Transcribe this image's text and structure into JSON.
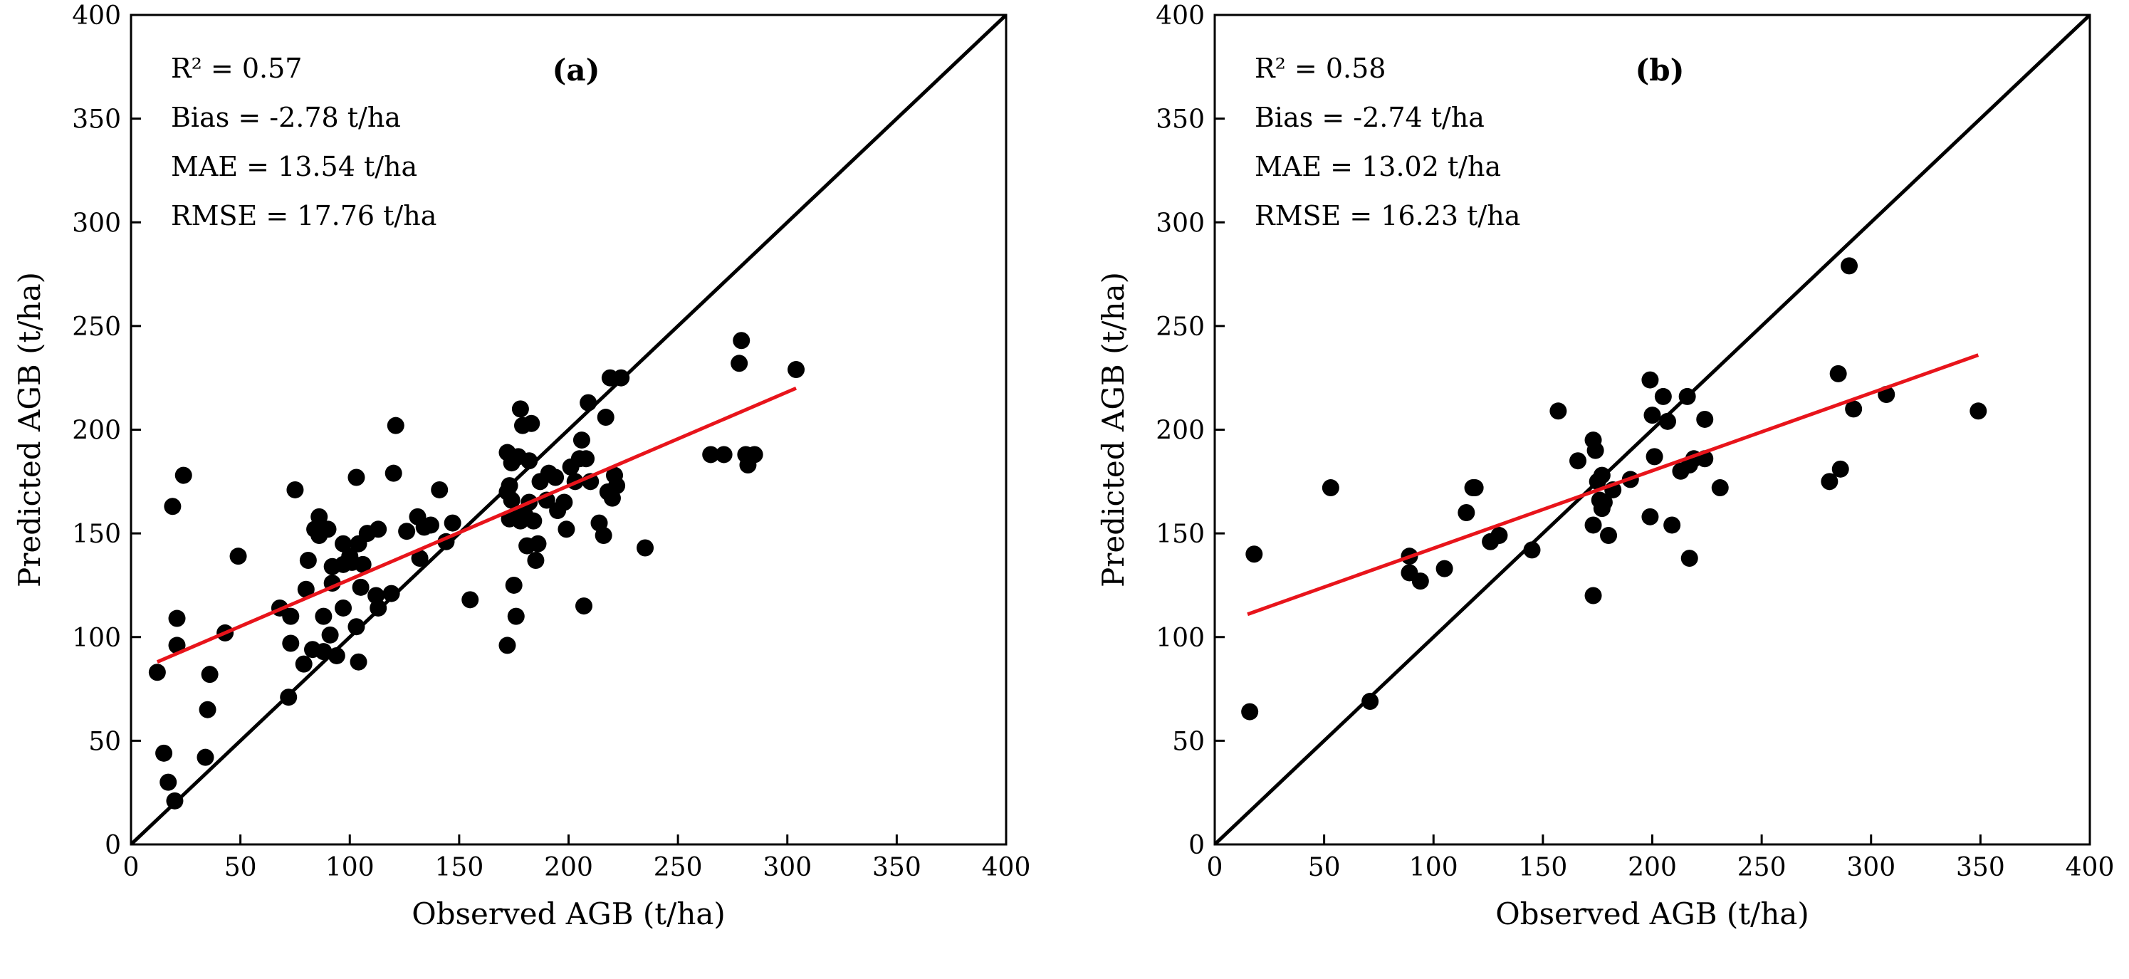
{
  "chart_data": [
    {
      "type": "scatter",
      "panel_label": "(a)",
      "xlabel": "Observed AGB (t/ha)",
      "ylabel": "Predicted AGB (t/ha)",
      "xlim": [
        0,
        400
      ],
      "ylim": [
        0,
        400
      ],
      "xticks": [
        0,
        50,
        100,
        150,
        200,
        250,
        300,
        350,
        400
      ],
      "yticks": [
        0,
        50,
        100,
        150,
        200,
        250,
        300,
        350,
        400
      ],
      "grid": false,
      "annotations": [
        "R² = 0.57",
        "Bias = -2.78 t/ha",
        "MAE = 13.54 t/ha",
        "RMSE = 17.76 t/ha"
      ],
      "reference_line": {
        "name": "1:1 line",
        "color": "#000000",
        "points": [
          [
            0,
            0
          ],
          [
            400,
            400
          ]
        ]
      },
      "fit_line": {
        "name": "fit",
        "color": "#e8141b",
        "points": [
          [
            12,
            88
          ],
          [
            304,
            220
          ]
        ]
      },
      "points": [
        [
          12,
          83
        ],
        [
          15,
          44
        ],
        [
          17,
          30
        ],
        [
          19,
          163
        ],
        [
          20,
          21
        ],
        [
          21,
          96
        ],
        [
          21,
          109
        ],
        [
          24,
          178
        ],
        [
          34,
          42
        ],
        [
          35,
          65
        ],
        [
          36,
          82
        ],
        [
          43,
          102
        ],
        [
          49,
          139
        ],
        [
          68,
          114
        ],
        [
          72,
          71
        ],
        [
          73,
          97
        ],
        [
          73,
          110
        ],
        [
          75,
          171
        ],
        [
          79,
          87
        ],
        [
          80,
          123
        ],
        [
          81,
          137
        ],
        [
          83,
          94
        ],
        [
          84,
          152
        ],
        [
          86,
          158
        ],
        [
          86,
          149
        ],
        [
          88,
          93
        ],
        [
          88,
          110
        ],
        [
          90,
          152
        ],
        [
          91,
          101
        ],
        [
          92,
          126
        ],
        [
          92,
          134
        ],
        [
          94,
          91
        ],
        [
          97,
          114
        ],
        [
          97,
          145
        ],
        [
          97,
          135
        ],
        [
          100,
          139
        ],
        [
          101,
          136
        ],
        [
          103,
          105
        ],
        [
          103,
          177
        ],
        [
          104,
          88
        ],
        [
          104,
          145
        ],
        [
          105,
          124
        ],
        [
          106,
          135
        ],
        [
          108,
          150
        ],
        [
          112,
          120
        ],
        [
          113,
          152
        ],
        [
          113,
          114
        ],
        [
          119,
          121
        ],
        [
          120,
          179
        ],
        [
          121,
          202
        ],
        [
          126,
          151
        ],
        [
          131,
          158
        ],
        [
          132,
          138
        ],
        [
          134,
          153
        ],
        [
          137,
          154
        ],
        [
          141,
          171
        ],
        [
          144,
          146
        ],
        [
          147,
          155
        ],
        [
          155,
          118
        ],
        [
          172,
          96
        ],
        [
          172,
          170
        ],
        [
          172,
          189
        ],
        [
          173,
          157
        ],
        [
          173,
          173
        ],
        [
          174,
          184
        ],
        [
          174,
          166
        ],
        [
          175,
          125
        ],
        [
          176,
          110
        ],
        [
          176,
          158
        ],
        [
          177,
          187
        ],
        [
          178,
          210
        ],
        [
          178,
          156
        ],
        [
          179,
          202
        ],
        [
          180,
          159
        ],
        [
          181,
          144
        ],
        [
          182,
          165
        ],
        [
          182,
          185
        ],
        [
          183,
          203
        ],
        [
          184,
          156
        ],
        [
          185,
          137
        ],
        [
          186,
          145
        ],
        [
          187,
          175
        ],
        [
          190,
          166
        ],
        [
          191,
          179
        ],
        [
          194,
          177
        ],
        [
          195,
          161
        ],
        [
          198,
          165
        ],
        [
          199,
          152
        ],
        [
          201,
          182
        ],
        [
          203,
          175
        ],
        [
          205,
          186
        ],
        [
          206,
          195
        ],
        [
          207,
          115
        ],
        [
          208,
          186
        ],
        [
          209,
          213
        ],
        [
          210,
          175
        ],
        [
          214,
          155
        ],
        [
          216,
          149
        ],
        [
          217,
          206
        ],
        [
          218,
          170
        ],
        [
          219,
          225
        ],
        [
          220,
          167
        ],
        [
          221,
          178
        ],
        [
          222,
          173
        ],
        [
          224,
          225
        ],
        [
          235,
          143
        ],
        [
          265,
          188
        ],
        [
          271,
          188
        ],
        [
          278,
          232
        ],
        [
          279,
          243
        ],
        [
          281,
          188
        ],
        [
          282,
          183
        ],
        [
          285,
          188
        ],
        [
          304,
          229
        ]
      ]
    },
    {
      "type": "scatter",
      "panel_label": "(b)",
      "xlabel": "Observed AGB (t/ha)",
      "ylabel": "Predicted AGB (t/ha)",
      "xlim": [
        0,
        400
      ],
      "ylim": [
        0,
        400
      ],
      "xticks": [
        0,
        50,
        100,
        150,
        200,
        250,
        300,
        350,
        400
      ],
      "yticks": [
        0,
        50,
        100,
        150,
        200,
        250,
        300,
        350,
        400
      ],
      "grid": false,
      "annotations": [
        "R² = 0.58",
        "Bias = -2.74 t/ha",
        "MAE = 13.02 t/ha",
        "RMSE = 16.23 t/ha"
      ],
      "reference_line": {
        "name": "1:1 line",
        "color": "#000000",
        "points": [
          [
            0,
            0
          ],
          [
            400,
            400
          ]
        ]
      },
      "fit_line": {
        "name": "fit",
        "color": "#e8141b",
        "points": [
          [
            15,
            111
          ],
          [
            349,
            236
          ]
        ]
      },
      "points": [
        [
          16,
          64
        ],
        [
          18,
          140
        ],
        [
          53,
          172
        ],
        [
          71,
          69
        ],
        [
          89,
          139
        ],
        [
          89,
          131
        ],
        [
          94,
          127
        ],
        [
          105,
          133
        ],
        [
          115,
          160
        ],
        [
          118,
          172
        ],
        [
          119,
          172
        ],
        [
          126,
          146
        ],
        [
          130,
          149
        ],
        [
          145,
          142
        ],
        [
          157,
          209
        ],
        [
          166,
          185
        ],
        [
          173,
          120
        ],
        [
          173,
          154
        ],
        [
          173,
          195
        ],
        [
          174,
          190
        ],
        [
          175,
          175
        ],
        [
          176,
          166
        ],
        [
          177,
          178
        ],
        [
          177,
          162
        ],
        [
          178,
          165
        ],
        [
          180,
          149
        ],
        [
          182,
          171
        ],
        [
          190,
          176
        ],
        [
          199,
          224
        ],
        [
          199,
          158
        ],
        [
          200,
          207
        ],
        [
          201,
          187
        ],
        [
          205,
          216
        ],
        [
          207,
          204
        ],
        [
          209,
          154
        ],
        [
          213,
          180
        ],
        [
          216,
          216
        ],
        [
          217,
          138
        ],
        [
          217,
          183
        ],
        [
          219,
          186
        ],
        [
          224,
          205
        ],
        [
          224,
          186
        ],
        [
          231,
          172
        ],
        [
          281,
          175
        ],
        [
          285,
          227
        ],
        [
          286,
          181
        ],
        [
          290,
          279
        ],
        [
          292,
          210
        ],
        [
          307,
          217
        ],
        [
          349,
          209
        ]
      ]
    }
  ]
}
